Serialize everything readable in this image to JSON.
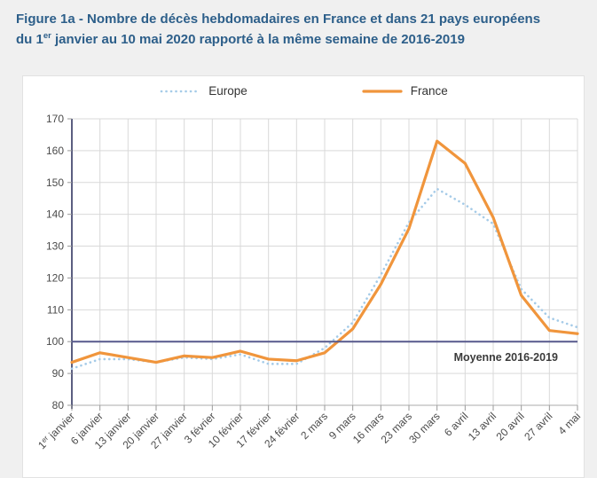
{
  "figure": {
    "title_line1": "Figure 1a - Nombre de décès hebdomadaires en France et dans 21 pays européens",
    "title_line2_pre": "du 1",
    "title_line2_sup": "er",
    "title_line2_post": " janvier au 10 mai 2020 rapporté à la même semaine de 2016-2019"
  },
  "colors": {
    "title": "#2d5f8a",
    "page_bg": "#f0f0f0",
    "panel_bg": "#ffffff",
    "panel_border": "#e2e2e2",
    "grid": "#d9d9d9",
    "axis": "#5b5e80",
    "axis_light": "#ababab",
    "tick": "#999999",
    "text": "#4a4a4a",
    "reference_label_text": "#3b3b3b"
  },
  "chart_data": {
    "type": "line",
    "title": "Figure 1a - Nombre de décès hebdomadaires en France et dans 21 pays européens du 1er janvier au 10 mai 2020 rapporté à la même semaine de 2016-2019",
    "xlabel": "",
    "ylabel": "",
    "ylim": [
      80,
      170
    ],
    "ytick_step": 10,
    "grid": true,
    "legend_position": "top",
    "categories": [
      "1er janvier",
      "6 janvier",
      "13 janvier",
      "20 janvier",
      "27 janvier",
      "3 février",
      "10 février",
      "17 février",
      "24 février",
      "2 mars",
      "9 mars",
      "16 mars",
      "23 mars",
      "30 mars",
      "6 avril",
      "13 avril",
      "20 avril",
      "27 avril",
      "4 mai"
    ],
    "series": [
      {
        "name": "Europe",
        "style": "dotted",
        "color": "#a5cbe8",
        "values": [
          91.5,
          94.5,
          94.5,
          93.5,
          95,
          94.5,
          96,
          93,
          93,
          98,
          106,
          121,
          137.5,
          148,
          143,
          137,
          116.5,
          107.5,
          104.5
        ]
      },
      {
        "name": "France",
        "style": "solid",
        "color": "#f0953c",
        "values": [
          93.5,
          96.5,
          95,
          93.5,
          95.5,
          95,
          97,
          94.5,
          94,
          96.5,
          104,
          118,
          135.5,
          163,
          156,
          139,
          114.5,
          103.5,
          102.5
        ]
      }
    ],
    "reference_line": {
      "value": 100,
      "label": "Moyenne 2016-2019",
      "color": "#57598c"
    }
  }
}
